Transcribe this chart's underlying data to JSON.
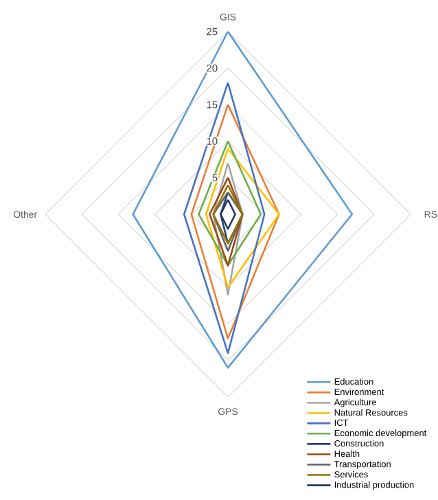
{
  "chart_data": {
    "type": "radar",
    "categories": [
      "GIS",
      "RS",
      "GPS",
      "Other"
    ],
    "ylim": [
      0,
      25
    ],
    "yticks": [
      5,
      10,
      15,
      20,
      25
    ],
    "grid": true,
    "legend": "bottom right",
    "series": [
      {
        "name": "Education",
        "color": "#5b9bd5",
        "values": [
          25,
          17,
          21,
          13
        ]
      },
      {
        "name": "Environment",
        "color": "#ed7d31",
        "values": [
          15,
          7,
          17,
          5
        ]
      },
      {
        "name": "Agriculture",
        "color": "#a5a5a5",
        "values": [
          7,
          2,
          11,
          2
        ]
      },
      {
        "name": "Natural Resources",
        "color": "#ffc000",
        "values": [
          9,
          7,
          10,
          3
        ]
      },
      {
        "name": "ICT",
        "color": "#4472c4",
        "values": [
          18,
          5,
          19,
          6
        ]
      },
      {
        "name": "Economic development",
        "color": "#70ad47",
        "values": [
          10,
          4.5,
          7,
          4
        ]
      },
      {
        "name": "Construction",
        "color": "#264478",
        "values": [
          3,
          2,
          4,
          1
        ]
      },
      {
        "name": "Health",
        "color": "#9e480e",
        "values": [
          5,
          2,
          7,
          2.5
        ]
      },
      {
        "name": "Transportation",
        "color": "#636363",
        "values": [
          3,
          2,
          5,
          2
        ]
      },
      {
        "name": "Services",
        "color": "#997300",
        "values": [
          4,
          2,
          4,
          2
        ]
      },
      {
        "name": "Industrial production",
        "color": "#1f3864",
        "values": [
          2,
          1,
          2,
          1
        ]
      }
    ]
  }
}
